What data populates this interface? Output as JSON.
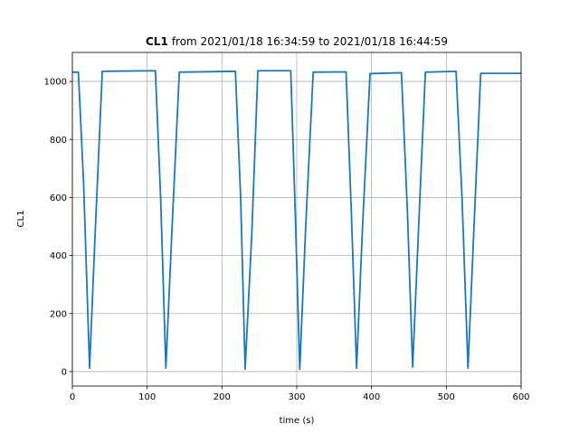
{
  "chart_data": {
    "type": "line",
    "title": [
      "CL1",
      "from 2021/01/18 16:34:59 to 2021/01/18 16:44:59"
    ],
    "x_label": "time (s)",
    "y_label": "CL1",
    "series": [
      {
        "name": "CL1",
        "color": "#1f77b4",
        "x": [
          0,
          8,
          15,
          23,
          30,
          40,
          111,
          118,
          125,
          133,
          143,
          218,
          225,
          231,
          240,
          248,
          292,
          298,
          304,
          312,
          322,
          366,
          373,
          380,
          388,
          398,
          440,
          448,
          455,
          463,
          472,
          513,
          521,
          529,
          537,
          546,
          600
        ],
        "values": [
          1032,
          1032,
          650,
          12,
          450,
          1035,
          1037,
          600,
          12,
          480,
          1032,
          1035,
          600,
          8,
          480,
          1037,
          1037,
          550,
          8,
          500,
          1032,
          1033,
          550,
          12,
          500,
          1027,
          1030,
          550,
          15,
          500,
          1032,
          1035,
          600,
          12,
          500,
          1028,
          1028
        ]
      }
    ],
    "xlim": [
      0,
      600
    ],
    "ylim": [
      -50,
      1100
    ],
    "xticks": [
      0,
      100,
      200,
      300,
      400,
      500,
      600
    ],
    "yticks": [
      0,
      200,
      400,
      600,
      800,
      1000
    ],
    "grid": true
  }
}
